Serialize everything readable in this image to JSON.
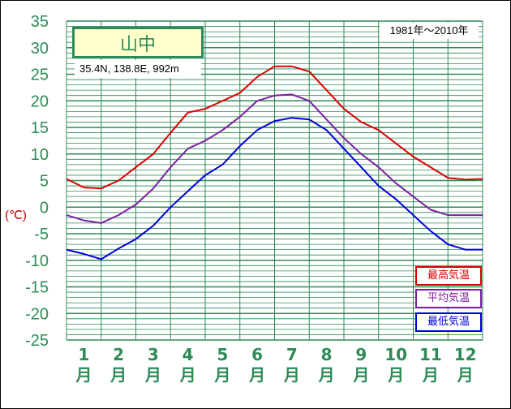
{
  "station": {
    "name": "山中",
    "coords": "35.4N,  138.8E,  992m",
    "period": "1981年〜2010年"
  },
  "unit_label": "(℃)",
  "colors": {
    "max": "#dd0000",
    "mean": "#7b1fa2",
    "min": "#0000dd",
    "grid": "#2e8b57",
    "axis_text": "#2e8b57"
  },
  "legend": [
    {
      "key": "max",
      "label": "最高気温"
    },
    {
      "key": "mean",
      "label": "平均気温"
    },
    {
      "key": "min",
      "label": "最低気温"
    }
  ],
  "chart_data": {
    "type": "line",
    "ylim": [
      -25,
      35
    ],
    "yticks": [
      35,
      30,
      25,
      20,
      15,
      10,
      5,
      0,
      -5,
      -10,
      -15,
      -20,
      -25
    ],
    "categories": [
      "1",
      "2",
      "3",
      "4",
      "5",
      "6",
      "7",
      "8",
      "9",
      "10",
      "11",
      "12"
    ],
    "month_suffix": "月",
    "x": [
      0,
      0.5,
      1,
      1.5,
      2,
      2.5,
      3,
      3.5,
      4,
      4.5,
      5,
      5.5,
      6,
      6.5,
      7,
      7.5,
      8,
      8.5,
      9,
      9.5,
      10,
      10.5,
      11,
      11.5,
      12
    ],
    "series": [
      {
        "key": "max",
        "name": "最高気温",
        "values": [
          5.3,
          3.7,
          3.5,
          5.0,
          7.5,
          10.0,
          14.0,
          17.8,
          18.5,
          20.0,
          21.5,
          24.5,
          26.5,
          26.5,
          25.5,
          22.0,
          18.5,
          16.0,
          14.5,
          12.0,
          9.5,
          7.5,
          5.5,
          5.2,
          5.3
        ]
      },
      {
        "key": "mean",
        "name": "平均気温",
        "values": [
          -1.5,
          -2.5,
          -3.0,
          -1.5,
          0.5,
          3.5,
          7.5,
          11.0,
          12.5,
          14.5,
          17.0,
          20.0,
          21.0,
          21.2,
          20.0,
          16.5,
          13.0,
          10.0,
          7.5,
          4.5,
          2.0,
          -0.5,
          -1.5,
          -1.5,
          -1.5
        ]
      },
      {
        "key": "min",
        "name": "最低気温",
        "values": [
          -8.0,
          -8.8,
          -9.8,
          -7.8,
          -6.0,
          -3.5,
          0.0,
          3.0,
          6.0,
          8.0,
          11.5,
          14.5,
          16.2,
          16.8,
          16.5,
          14.5,
          11.0,
          7.5,
          4.0,
          1.5,
          -1.5,
          -4.5,
          -7.0,
          -8.0,
          -8.0
        ]
      }
    ]
  }
}
